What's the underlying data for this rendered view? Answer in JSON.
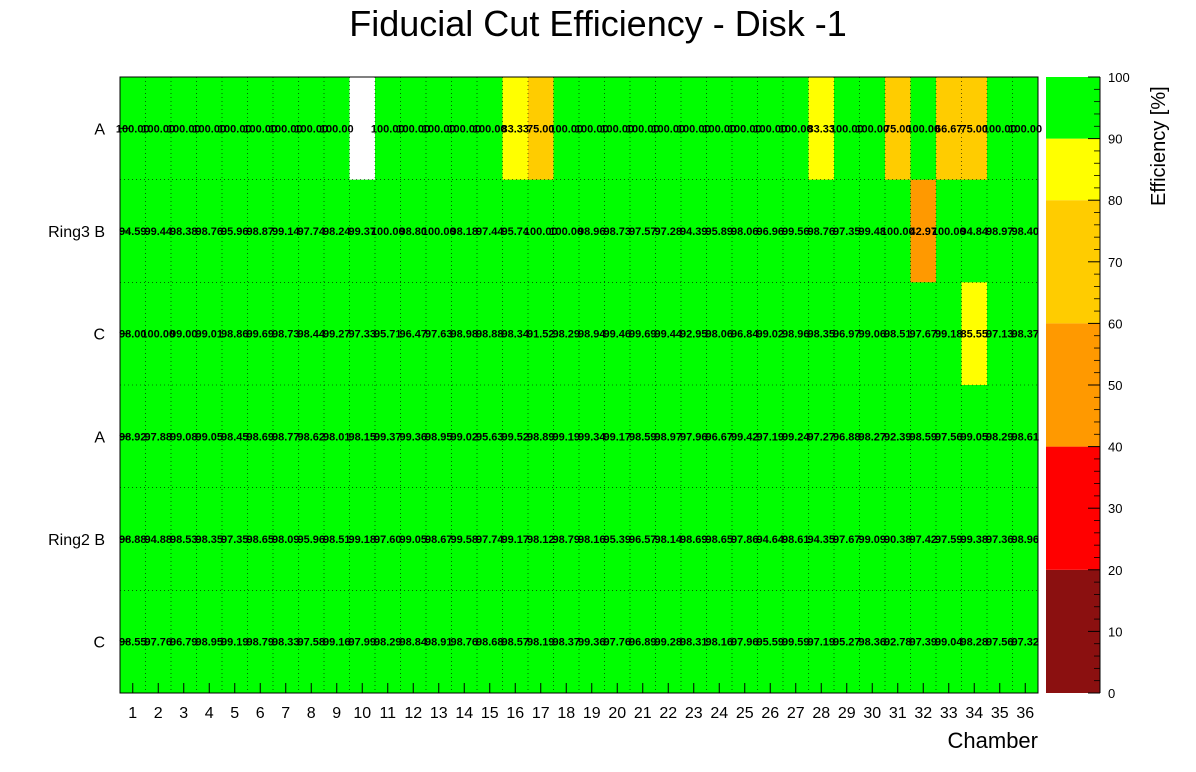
{
  "chart_data": {
    "type": "heatmap",
    "title": "Fiducial Cut Efficiency - Disk -1",
    "xlabel": "Chamber",
    "zlabel": "Efficiency [%]",
    "x": [
      "1",
      "2",
      "3",
      "4",
      "5",
      "6",
      "7",
      "8",
      "9",
      "10",
      "11",
      "12",
      "13",
      "14",
      "15",
      "16",
      "17",
      "18",
      "19",
      "20",
      "21",
      "22",
      "23",
      "24",
      "25",
      "26",
      "27",
      "28",
      "29",
      "30",
      "31",
      "32",
      "33",
      "34",
      "35",
      "36"
    ],
    "rows": [
      {
        "label": "A",
        "group": "Ring3",
        "values": [
          100.0,
          100.0,
          100.0,
          100.0,
          100.0,
          100.0,
          100.0,
          100.0,
          100.0,
          null,
          100.0,
          100.0,
          100.0,
          100.0,
          100.0,
          83.33,
          75.0,
          100.0,
          100.0,
          100.0,
          100.0,
          100.0,
          100.0,
          100.0,
          100.0,
          100.0,
          100.0,
          83.33,
          100.0,
          100.0,
          75.0,
          100.0,
          66.67,
          75.0,
          100.0,
          100.0
        ]
      },
      {
        "label": "B",
        "group": "Ring3",
        "values": [
          94.59,
          99.44,
          98.38,
          98.76,
          95.96,
          98.87,
          99.14,
          97.74,
          98.24,
          99.37,
          100.0,
          98.8,
          100.0,
          98.18,
          97.44,
          95.74,
          100.0,
          100.0,
          98.96,
          98.73,
          97.57,
          97.28,
          94.39,
          95.89,
          98.06,
          96.96,
          99.56,
          98.76,
          97.35,
          99.48,
          100.0,
          42.97,
          100.0,
          94.84,
          98.97,
          98.4
        ]
      },
      {
        "label": "C",
        "group": "Ring3",
        "values": [
          98.0,
          100.0,
          99.0,
          99.01,
          98.86,
          99.69,
          98.73,
          98.44,
          99.27,
          97.33,
          95.71,
          96.47,
          97.63,
          98.98,
          98.88,
          98.34,
          91.52,
          98.29,
          98.94,
          99.46,
          99.69,
          99.44,
          92.95,
          98.06,
          96.84,
          99.02,
          98.96,
          98.35,
          96.97,
          99.06,
          98.51,
          97.67,
          99.18,
          85.55,
          97.13,
          98.37
        ]
      },
      {
        "label": "A",
        "group": "Ring2",
        "values": [
          98.92,
          97.88,
          99.08,
          99.05,
          98.45,
          98.69,
          98.77,
          98.62,
          98.01,
          98.15,
          99.37,
          99.36,
          98.95,
          99.02,
          95.63,
          99.52,
          98.89,
          99.19,
          99.34,
          99.17,
          98.59,
          98.97,
          97.96,
          96.67,
          99.42,
          97.19,
          99.24,
          97.27,
          96.88,
          98.27,
          92.39,
          98.59,
          97.56,
          99.05,
          98.29,
          98.61
        ]
      },
      {
        "label": "B",
        "group": "Ring2",
        "values": [
          98.88,
          94.88,
          98.53,
          98.35,
          97.35,
          98.65,
          98.09,
          95.96,
          98.51,
          99.18,
          97.6,
          99.05,
          98.67,
          99.58,
          97.74,
          99.17,
          98.12,
          98.79,
          98.16,
          95.39,
          96.57,
          98.14,
          98.69,
          98.65,
          97.86,
          94.64,
          98.61,
          94.35,
          97.67,
          99.09,
          90.38,
          97.42,
          97.59,
          99.38,
          97.36,
          98.96
        ]
      },
      {
        "label": "C",
        "group": "Ring2",
        "values": [
          98.55,
          97.76,
          96.79,
          98.95,
          99.19,
          98.79,
          98.33,
          97.58,
          99.16,
          97.99,
          98.29,
          98.84,
          98.91,
          98.76,
          98.68,
          98.57,
          98.19,
          98.37,
          99.36,
          97.76,
          96.89,
          99.28,
          98.31,
          98.16,
          97.96,
          95.59,
          99.59,
          97.19,
          95.27,
          98.36,
          92.78,
          97.39,
          99.04,
          98.28,
          97.56,
          97.32
        ]
      }
    ],
    "cell_labels": [
      [
        "100.00",
        "100.00",
        "100.00",
        "100.00",
        "100.00",
        "100.00",
        "100.00",
        "100.00",
        "100.00",
        "",
        "100.00",
        "100.00",
        "100.00",
        "100.00",
        "100.00",
        "83.33",
        "75.00",
        "100.00",
        "100.00",
        "100.00",
        "100.00",
        "100.00",
        "100.00",
        "100.00",
        "100.00",
        "100.00",
        "100.00",
        "83.33",
        "100.00",
        "100.00",
        "75.00",
        "100.00",
        "66.67",
        "75.00",
        "100.00",
        "100.00"
      ],
      [
        "94.59",
        "99.44",
        "98.38",
        "98.76",
        "95.96",
        "98.87",
        "99.14",
        "97.74",
        "98.24",
        "99.37",
        "100.00",
        "98.80",
        "100.00",
        "98.18",
        "97.44",
        "95.74",
        "100.00",
        "100.00",
        "98.96",
        "98.73",
        "97.57",
        "97.28",
        "94.39",
        "95.89",
        "98.06",
        "96.96",
        "99.56",
        "98.76",
        "97.35",
        "99.48",
        "100.00",
        "42.97",
        "100.00",
        "94.84",
        "98.97",
        "98.40"
      ],
      [
        "98.00",
        "100.00",
        "99.00",
        "99.01",
        "98.86",
        "99.69",
        "98.73",
        "98.44",
        "99.27",
        "97.33",
        "95.71",
        "96.47",
        "97.63",
        "98.98",
        "98.88",
        "98.34",
        "91.52",
        "98.29",
        "98.94",
        "99.46",
        "99.69",
        "99.44",
        "92.95",
        "98.06",
        "96.84",
        "99.02",
        "98.96",
        "98.35",
        "96.97",
        "99.06",
        "98.51",
        "97.67",
        "99.18",
        "85.55",
        "97.13",
        "98.37"
      ],
      [
        "98.92",
        "97.88",
        "99.08",
        "99.05",
        "98.45",
        "98.69",
        "98.77",
        "98.62",
        "98.01",
        "98.15",
        "99.37",
        "99.36",
        "98.95",
        "99.02",
        "95.63",
        "99.52",
        "98.89",
        "99.19",
        "99.34",
        "99.17",
        "98.59",
        "98.97",
        "97.96",
        "96.67",
        "99.42",
        "97.19",
        "99.24",
        "97.27",
        "96.88",
        "98.27",
        "92.39",
        "98.59",
        "97.56",
        "99.05",
        "98.29",
        "98.61"
      ],
      [
        "98.88",
        "94.88",
        "98.53",
        "98.35",
        "97.35",
        "98.65",
        "98.09",
        "95.96",
        "98.51",
        "99.18",
        "97.60",
        "99.05",
        "98.67",
        "99.58",
        "97.74",
        "99.17",
        "98.12",
        "98.79",
        "98.16",
        "95.39",
        "96.57",
        "98.14",
        "98.69",
        "98.65",
        "97.86",
        "94.64",
        "98.61",
        "94.35",
        "97.67",
        "99.09",
        "90.38",
        "97.42",
        "97.59",
        "99.38",
        "97.36",
        "98.96"
      ],
      [
        "98.55",
        "97.76",
        "96.79",
        "98.95",
        "99.19",
        "98.79",
        "98.33",
        "97.58",
        "99.16",
        "97.99",
        "98.29",
        "98.84",
        "98.91",
        "98.76",
        "98.68",
        "98.57",
        "98.19",
        "98.37",
        "99.36",
        "97.76",
        "96.89",
        "99.28",
        "98.31",
        "98.16",
        "97.96",
        "95.59",
        "99.59",
        "97.19",
        "95.27",
        "98.36",
        "92.78",
        "97.39",
        "99.04",
        "98.28",
        "97.56",
        "97.32"
      ]
    ],
    "zlim": [
      0,
      100
    ],
    "z_ticks": [
      "0",
      "10",
      "20",
      "30",
      "40",
      "50",
      "60",
      "70",
      "80",
      "90",
      "100"
    ],
    "color_bins": [
      {
        "min": 0,
        "max": 20,
        "color": "#8b1010"
      },
      {
        "min": 20,
        "max": 40,
        "color": "#ff0000"
      },
      {
        "min": 40,
        "max": 60,
        "color": "#ff9900"
      },
      {
        "min": 60,
        "max": 80,
        "color": "#ffcc00"
      },
      {
        "min": 80,
        "max": 90,
        "color": "#ffff00"
      },
      {
        "min": 90,
        "max": 100,
        "color": "#00ff00"
      }
    ],
    "empty_color": "#ffffff",
    "grid": true,
    "legend": "right"
  }
}
